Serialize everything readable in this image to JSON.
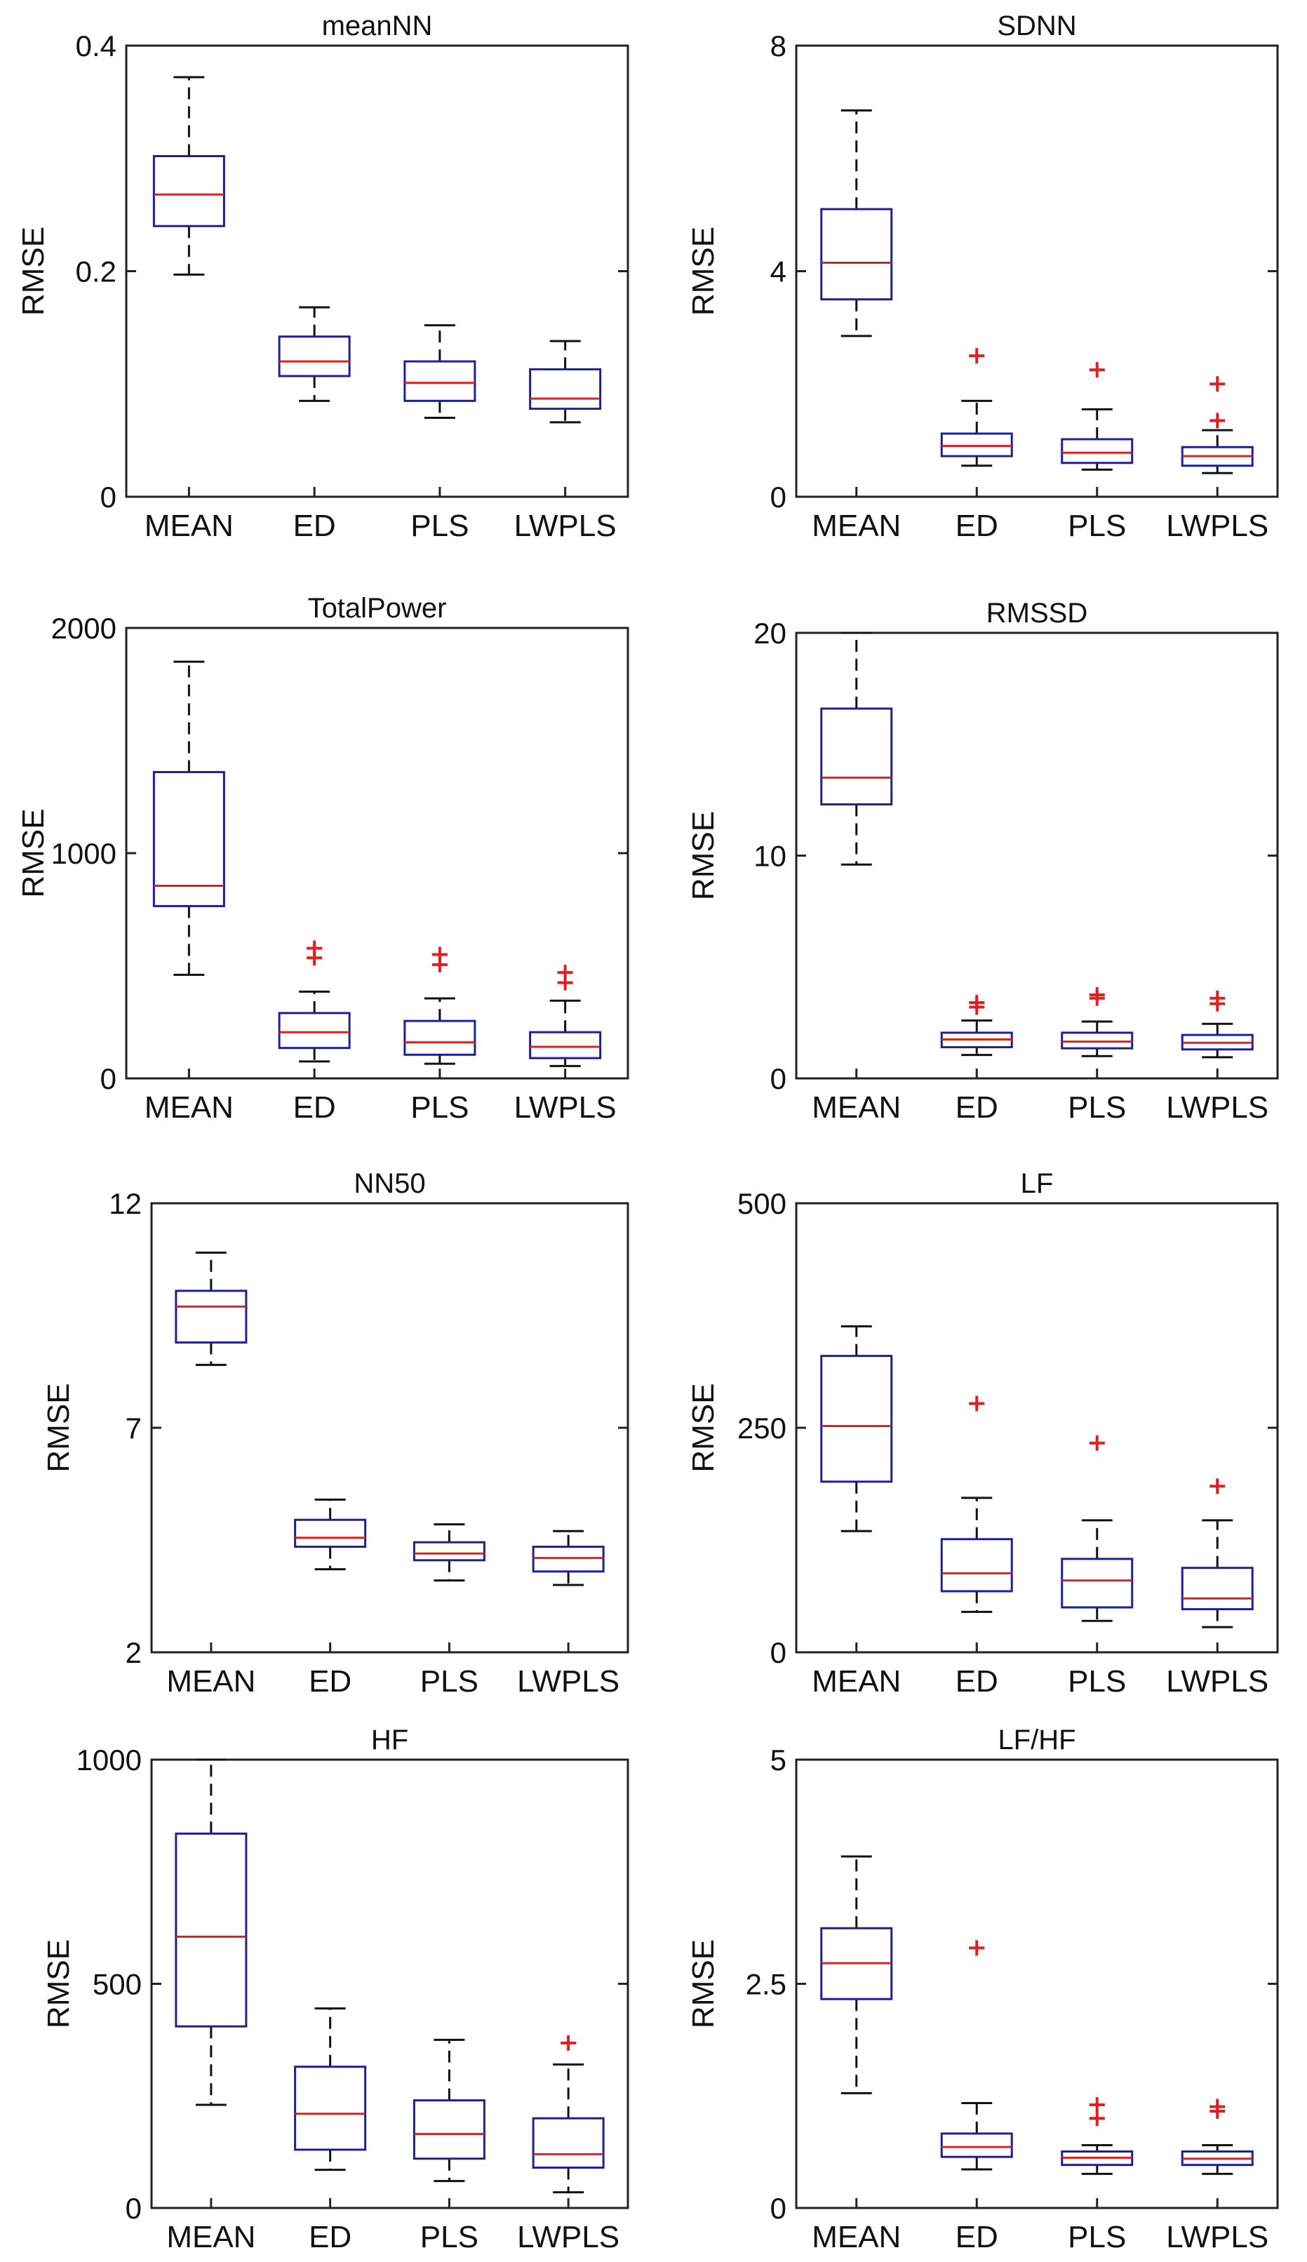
{
  "figure": {
    "ylabel": "RMSE",
    "categories": [
      "MEAN",
      "ED",
      "PLS",
      "LWPLS"
    ]
  },
  "colors": {
    "box": "#1f1f99",
    "median": "#e0201f",
    "outlier": "#e0201f",
    "whisker": "#111111",
    "axis": "#222222"
  },
  "chart_data": [
    {
      "type": "boxplot",
      "title": "meanNN",
      "ylabel": "RMSE",
      "ylim": [
        0,
        0.4
      ],
      "yticks": [
        0,
        0.2,
        0.4
      ],
      "ytick_labels": [
        "0",
        "0.2",
        "0.4"
      ],
      "categories": [
        "MEAN",
        "ED",
        "PLS",
        "LWPLS"
      ],
      "boxes": [
        {
          "name": "MEAN",
          "whisker_low": 0.197,
          "q1": 0.24,
          "median": 0.268,
          "q3": 0.302,
          "whisker_high": 0.372,
          "outliers": []
        },
        {
          "name": "ED",
          "whisker_low": 0.085,
          "q1": 0.107,
          "median": 0.12,
          "q3": 0.142,
          "whisker_high": 0.168,
          "outliers": []
        },
        {
          "name": "PLS",
          "whisker_low": 0.07,
          "q1": 0.085,
          "median": 0.101,
          "q3": 0.12,
          "whisker_high": 0.152,
          "outliers": []
        },
        {
          "name": "LWPLS",
          "whisker_low": 0.066,
          "q1": 0.078,
          "median": 0.087,
          "q3": 0.113,
          "whisker_high": 0.138,
          "outliers": []
        }
      ]
    },
    {
      "type": "boxplot",
      "title": "SDNN",
      "ylabel": "RMSE",
      "ylim": [
        0,
        8
      ],
      "yticks": [
        0,
        4,
        8
      ],
      "ytick_labels": [
        "0",
        "4",
        "8"
      ],
      "categories": [
        "MEAN",
        "ED",
        "PLS",
        "LWPLS"
      ],
      "boxes": [
        {
          "name": "MEAN",
          "whisker_low": 2.85,
          "q1": 3.5,
          "median": 4.15,
          "q3": 5.1,
          "whisker_high": 6.85,
          "outliers": []
        },
        {
          "name": "ED",
          "whisker_low": 0.55,
          "q1": 0.72,
          "median": 0.9,
          "q3": 1.12,
          "whisker_high": 1.7,
          "outliers": [
            2.5
          ]
        },
        {
          "name": "PLS",
          "whisker_low": 0.48,
          "q1": 0.6,
          "median": 0.78,
          "q3": 1.02,
          "whisker_high": 1.55,
          "outliers": [
            2.25
          ]
        },
        {
          "name": "LWPLS",
          "whisker_low": 0.42,
          "q1": 0.55,
          "median": 0.72,
          "q3": 0.88,
          "whisker_high": 1.18,
          "outliers": [
            1.35,
            2.0
          ]
        }
      ]
    },
    {
      "type": "boxplot",
      "title": "TotalPower",
      "ylabel": "RMSE",
      "ylim": [
        0,
        2000
      ],
      "yticks": [
        0,
        1000,
        2000
      ],
      "ytick_labels": [
        "0",
        "1000",
        "2000"
      ],
      "categories": [
        "MEAN",
        "ED",
        "PLS",
        "LWPLS"
      ],
      "boxes": [
        {
          "name": "MEAN",
          "whisker_low": 460,
          "q1": 765,
          "median": 855,
          "q3": 1360,
          "whisker_high": 1850,
          "outliers": []
        },
        {
          "name": "ED",
          "whisker_low": 75,
          "q1": 135,
          "median": 205,
          "q3": 290,
          "whisker_high": 385,
          "outliers": [
            535,
            578
          ]
        },
        {
          "name": "PLS",
          "whisker_low": 65,
          "q1": 105,
          "median": 160,
          "q3": 255,
          "whisker_high": 355,
          "outliers": [
            505,
            550
          ]
        },
        {
          "name": "LWPLS",
          "whisker_low": 55,
          "q1": 90,
          "median": 140,
          "q3": 205,
          "whisker_high": 345,
          "outliers": [
            425,
            470
          ]
        }
      ]
    },
    {
      "type": "boxplot",
      "title": "RMSSD",
      "ylabel": "RMSE",
      "ylim": [
        0,
        20
      ],
      "yticks": [
        0,
        10,
        20
      ],
      "ytick_labels": [
        "0",
        "10",
        "20"
      ],
      "categories": [
        "MEAN",
        "ED",
        "PLS",
        "LWPLS"
      ],
      "boxes": [
        {
          "name": "MEAN",
          "whisker_low": 9.6,
          "q1": 12.3,
          "median": 13.5,
          "q3": 16.6,
          "whisker_high": 20,
          "outliers": []
        },
        {
          "name": "ED",
          "whisker_low": 1.05,
          "q1": 1.4,
          "median": 1.75,
          "q3": 2.05,
          "whisker_high": 2.6,
          "outliers": [
            3.2,
            3.4
          ]
        },
        {
          "name": "PLS",
          "whisker_low": 1.0,
          "q1": 1.35,
          "median": 1.65,
          "q3": 2.05,
          "whisker_high": 2.55,
          "outliers": [
            3.6,
            3.75
          ]
        },
        {
          "name": "LWPLS",
          "whisker_low": 0.95,
          "q1": 1.3,
          "median": 1.6,
          "q3": 1.95,
          "whisker_high": 2.45,
          "outliers": [
            3.35,
            3.6
          ]
        }
      ]
    },
    {
      "type": "boxplot",
      "title": "NN50",
      "ylabel": "RMSE",
      "ylim": [
        2,
        12
      ],
      "yticks": [
        2,
        7,
        12
      ],
      "ytick_labels": [
        "2",
        "7",
        "12"
      ],
      "categories": [
        "MEAN",
        "ED",
        "PLS",
        "LWPLS"
      ],
      "boxes": [
        {
          "name": "MEAN",
          "whisker_low": 8.4,
          "q1": 8.9,
          "median": 9.7,
          "q3": 10.05,
          "whisker_high": 10.9,
          "outliers": []
        },
        {
          "name": "ED",
          "whisker_low": 3.85,
          "q1": 4.35,
          "median": 4.55,
          "q3": 4.95,
          "whisker_high": 5.4,
          "outliers": []
        },
        {
          "name": "PLS",
          "whisker_low": 3.6,
          "q1": 4.05,
          "median": 4.2,
          "q3": 4.45,
          "whisker_high": 4.85,
          "outliers": []
        },
        {
          "name": "LWPLS",
          "whisker_low": 3.5,
          "q1": 3.8,
          "median": 4.1,
          "q3": 4.35,
          "whisker_high": 4.7,
          "outliers": []
        }
      ]
    },
    {
      "type": "boxplot",
      "title": "LF",
      "ylabel": "RMSE",
      "ylim": [
        0,
        500
      ],
      "yticks": [
        0,
        250,
        500
      ],
      "ytick_labels": [
        "0",
        "250",
        "500"
      ],
      "categories": [
        "MEAN",
        "ED",
        "PLS",
        "LWPLS"
      ],
      "boxes": [
        {
          "name": "MEAN",
          "whisker_low": 135,
          "q1": 190,
          "median": 252,
          "q3": 330,
          "whisker_high": 363,
          "outliers": []
        },
        {
          "name": "ED",
          "whisker_low": 45,
          "q1": 68,
          "median": 88,
          "q3": 126,
          "whisker_high": 172,
          "outliers": [
            277
          ]
        },
        {
          "name": "PLS",
          "whisker_low": 35,
          "q1": 50,
          "median": 80,
          "q3": 104,
          "whisker_high": 147,
          "outliers": [
            233
          ]
        },
        {
          "name": "LWPLS",
          "whisker_low": 28,
          "q1": 48,
          "median": 60,
          "q3": 94,
          "whisker_high": 147,
          "outliers": [
            185
          ]
        }
      ]
    },
    {
      "type": "boxplot",
      "title": "HF",
      "ylabel": "RMSE",
      "ylim": [
        0,
        1000
      ],
      "yticks": [
        0,
        500,
        1000
      ],
      "ytick_labels": [
        "0",
        "500",
        "1000"
      ],
      "categories": [
        "MEAN",
        "ED",
        "PLS",
        "LWPLS"
      ],
      "boxes": [
        {
          "name": "MEAN",
          "whisker_low": 230,
          "q1": 405,
          "median": 605,
          "q3": 835,
          "whisker_high": 1000,
          "outliers": []
        },
        {
          "name": "ED",
          "whisker_low": 85,
          "q1": 130,
          "median": 210,
          "q3": 315,
          "whisker_high": 445,
          "outliers": []
        },
        {
          "name": "PLS",
          "whisker_low": 60,
          "q1": 110,
          "median": 165,
          "q3": 240,
          "whisker_high": 375,
          "outliers": []
        },
        {
          "name": "LWPLS",
          "whisker_low": 35,
          "q1": 90,
          "median": 120,
          "q3": 200,
          "whisker_high": 320,
          "outliers": [
            368
          ]
        }
      ]
    },
    {
      "type": "boxplot",
      "title": "LF/HF",
      "ylabel": "RMSE",
      "ylim": [
        0,
        5
      ],
      "yticks": [
        0,
        2.5,
        5
      ],
      "ytick_labels": [
        "0",
        "2.5",
        "5"
      ],
      "categories": [
        "MEAN",
        "ED",
        "PLS",
        "LWPLS"
      ],
      "boxes": [
        {
          "name": "MEAN",
          "whisker_low": 1.28,
          "q1": 2.33,
          "median": 2.73,
          "q3": 3.12,
          "whisker_high": 3.92,
          "outliers": []
        },
        {
          "name": "ED",
          "whisker_low": 0.43,
          "q1": 0.57,
          "median": 0.68,
          "q3": 0.83,
          "whisker_high": 1.17,
          "outliers": [
            2.9
          ]
        },
        {
          "name": "PLS",
          "whisker_low": 0.38,
          "q1": 0.48,
          "median": 0.56,
          "q3": 0.63,
          "whisker_high": 0.7,
          "outliers": [
            1.0,
            1.15
          ]
        },
        {
          "name": "LWPLS",
          "whisker_low": 0.38,
          "q1": 0.48,
          "median": 0.55,
          "q3": 0.63,
          "whisker_high": 0.7,
          "outliers": [
            1.08,
            1.13
          ]
        }
      ]
    }
  ]
}
